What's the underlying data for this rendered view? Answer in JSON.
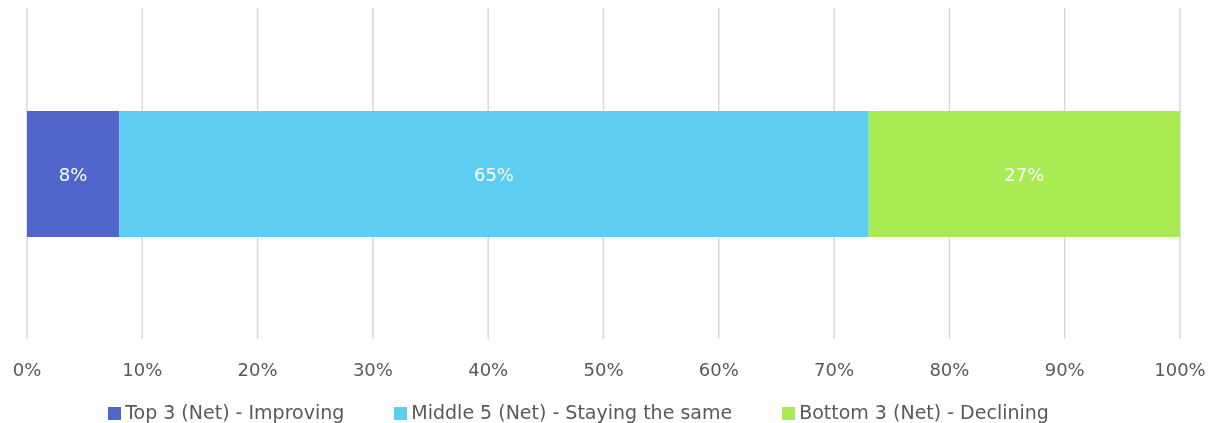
{
  "chart_data": {
    "type": "bar",
    "orientation": "horizontal",
    "stacked": true,
    "categories": [
      null
    ],
    "series": [
      {
        "name": "Top 3 (Net) - Improving",
        "color": "#5066cc",
        "values": [
          8
        ],
        "value_labels": [
          "8%"
        ]
      },
      {
        "name": "Middle 5 (Net) - Staying the same",
        "color": "#5ecdf2",
        "values": [
          65
        ],
        "value_labels": [
          "65%"
        ]
      },
      {
        "name": "Bottom 3 (Net) - Declining",
        "color": "#a8eb52",
        "values": [
          27
        ],
        "value_labels": [
          "27%"
        ]
      }
    ],
    "xlim": [
      0,
      100
    ],
    "xticks": [
      {
        "value": 0,
        "label": "0%"
      },
      {
        "value": 10,
        "label": "10%"
      },
      {
        "value": 20,
        "label": "20%"
      },
      {
        "value": 30,
        "label": "30%"
      },
      {
        "value": 40,
        "label": "40%"
      },
      {
        "value": 50,
        "label": "50%"
      },
      {
        "value": 60,
        "label": "60%"
      },
      {
        "value": 70,
        "label": "70%"
      },
      {
        "value": 80,
        "label": "80%"
      },
      {
        "value": 90,
        "label": "90%"
      },
      {
        "value": 100,
        "label": "100%"
      }
    ],
    "grid": "x",
    "legend": "bottom"
  }
}
